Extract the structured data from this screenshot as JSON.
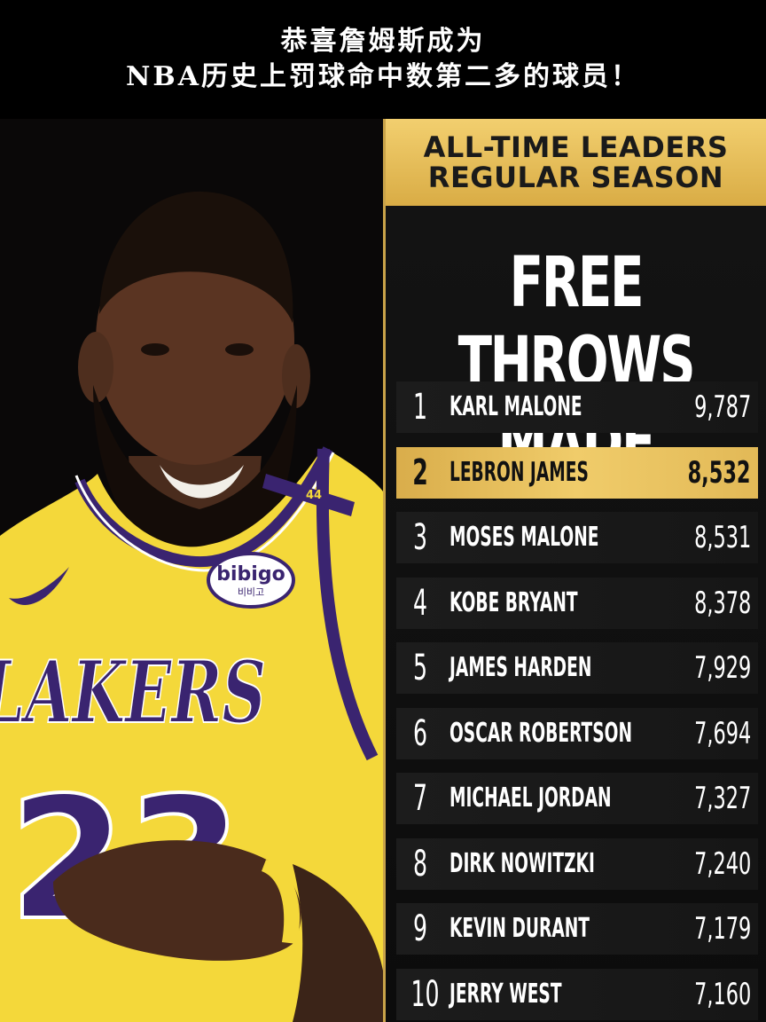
{
  "banner": {
    "line1": "恭喜詹姆斯成为",
    "line2": "NBA历史上罚球命中数第二多的球员！"
  },
  "panel": {
    "header_line1": "ALL-TIME LEADERS",
    "header_line2": "REGULAR SEASON",
    "title": "FREE THROWS MADE",
    "leaders": [
      {
        "rank": "1",
        "name": "KARL MALONE",
        "value": "9,787"
      },
      {
        "rank": "2",
        "name": "LEBRON JAMES",
        "value": "8,532"
      },
      {
        "rank": "3",
        "name": "MOSES MALONE",
        "value": "8,531"
      },
      {
        "rank": "4",
        "name": "KOBE BRYANT",
        "value": "8,378"
      },
      {
        "rank": "5",
        "name": "JAMES HARDEN",
        "value": "7,929"
      },
      {
        "rank": "6",
        "name": "OSCAR ROBERTSON",
        "value": "7,694"
      },
      {
        "rank": "7",
        "name": "MICHAEL JORDAN",
        "value": "7,327"
      },
      {
        "rank": "8",
        "name": "DIRK NOWITZKI",
        "value": "7,240"
      },
      {
        "rank": "9",
        "name": "KEVIN DURANT",
        "value": "7,179"
      },
      {
        "rank": "10",
        "name": "JERRY WEST",
        "value": "7,160"
      }
    ]
  },
  "jersey": {
    "team": "LAKERS",
    "number": "23",
    "sponsor": "bibigo",
    "sponsor_sub": "비비고",
    "strap_number": "44"
  },
  "colors": {
    "gold": "#f2cf6f",
    "jersey_yellow": "#f4d83a",
    "jersey_purple": "#3a2470"
  }
}
